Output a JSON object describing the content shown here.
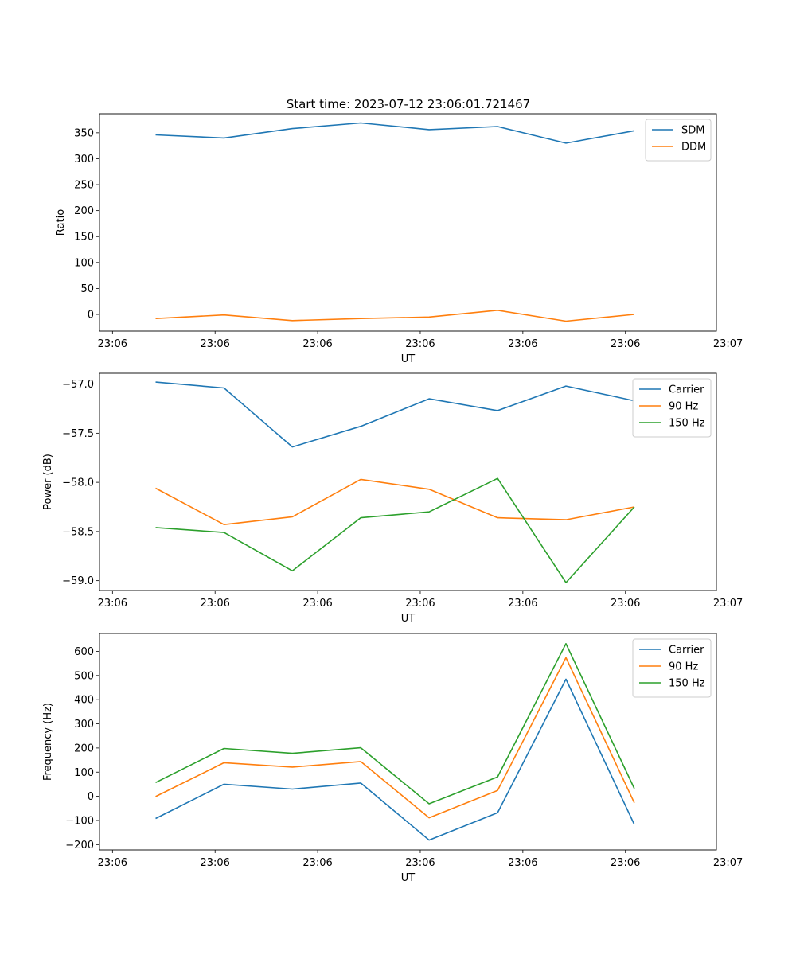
{
  "figure_title": "Start time: 2023-07-12 23:06:01.721467",
  "colors": {
    "blue": "#1f77b4",
    "orange": "#ff7f0e",
    "green": "#2ca02c"
  },
  "chart_data": [
    {
      "type": "line",
      "title": "Start time: 2023-07-12 23:06:01.721467",
      "xlabel": "UT",
      "ylabel": "Ratio",
      "x": [
        1,
        2,
        3,
        4,
        5,
        6,
        7,
        8
      ],
      "xlim": [
        0.18,
        9.2
      ],
      "xticks": [
        0.37,
        1.87,
        3.37,
        4.87,
        6.37,
        7.87,
        9.37
      ],
      "xtick_labels": [
        "23:06",
        "23:06",
        "23:06",
        "23:06",
        "23:06",
        "23:06",
        "23:07"
      ],
      "ylim": [
        -32.2,
        386.6
      ],
      "yticks": [
        0,
        50,
        100,
        150,
        200,
        250,
        300,
        350
      ],
      "ytick_labels": [
        "0",
        "50",
        "100",
        "150",
        "200",
        "250",
        "300",
        "350"
      ],
      "legend_loc": "top-right",
      "series": [
        {
          "name": "SDM",
          "color": "#1f77b4",
          "values": [
            346,
            340,
            358,
            369,
            356,
            362,
            330,
            354
          ]
        },
        {
          "name": "DDM",
          "color": "#ff7f0e",
          "values": [
            -8,
            -1,
            -12,
            -8,
            -5,
            8,
            -13,
            0
          ]
        }
      ]
    },
    {
      "type": "line",
      "title": "",
      "xlabel": "UT",
      "ylabel": "Power (dB)",
      "x": [
        1,
        2,
        3,
        4,
        5,
        6,
        7,
        8
      ],
      "xlim": [
        0.18,
        9.2
      ],
      "xticks": [
        0.37,
        1.87,
        3.37,
        4.87,
        6.37,
        7.87,
        9.37
      ],
      "xtick_labels": [
        "23:06",
        "23:06",
        "23:06",
        "23:06",
        "23:06",
        "23:06",
        "23:07"
      ],
      "ylim": [
        -59.1,
        -56.89
      ],
      "yticks": [
        -59.0,
        -58.5,
        -58.0,
        -57.5,
        -57.0
      ],
      "ytick_labels": [
        "−59.0",
        "−58.5",
        "−58.0",
        "−57.5",
        "−57.0"
      ],
      "legend_loc": "top-right",
      "series": [
        {
          "name": "Carrier",
          "color": "#1f77b4",
          "values": [
            -56.98,
            -57.04,
            -57.64,
            -57.43,
            -57.15,
            -57.27,
            -57.02,
            -57.17
          ]
        },
        {
          "name": "90 Hz",
          "color": "#ff7f0e",
          "values": [
            -58.06,
            -58.43,
            -58.35,
            -57.97,
            -58.07,
            -58.36,
            -58.38,
            -58.25
          ]
        },
        {
          "name": "150 Hz",
          "color": "#2ca02c",
          "values": [
            -58.46,
            -58.51,
            -58.9,
            -58.36,
            -58.3,
            -57.96,
            -59.02,
            -58.25
          ]
        }
      ]
    },
    {
      "type": "line",
      "title": "",
      "xlabel": "UT",
      "ylabel": "Frequency (Hz)",
      "x": [
        1,
        2,
        3,
        4,
        5,
        6,
        7,
        8
      ],
      "xlim": [
        0.18,
        9.2
      ],
      "xticks": [
        0.37,
        1.87,
        3.37,
        4.87,
        6.37,
        7.87,
        9.37
      ],
      "xtick_labels": [
        "23:06",
        "23:06",
        "23:06",
        "23:06",
        "23:06",
        "23:06",
        "23:07"
      ],
      "ylim": [
        -222,
        674
      ],
      "yticks": [
        -200,
        -100,
        0,
        100,
        200,
        300,
        400,
        500,
        600
      ],
      "ytick_labels": [
        "−200",
        "−100",
        "0",
        "100",
        "200",
        "300",
        "400",
        "500",
        "600"
      ],
      "legend_loc": "top-right",
      "series": [
        {
          "name": "Carrier",
          "color": "#1f77b4",
          "values": [
            -92,
            50,
            30,
            55,
            -181,
            -68,
            485,
            -117
          ]
        },
        {
          "name": "90 Hz",
          "color": "#ff7f0e",
          "values": [
            -1,
            139,
            121,
            144,
            -89,
            24,
            574,
            -27
          ]
        },
        {
          "name": "150 Hz",
          "color": "#2ca02c",
          "values": [
            57,
            198,
            178,
            201,
            -31,
            80,
            632,
            32
          ]
        }
      ]
    }
  ]
}
